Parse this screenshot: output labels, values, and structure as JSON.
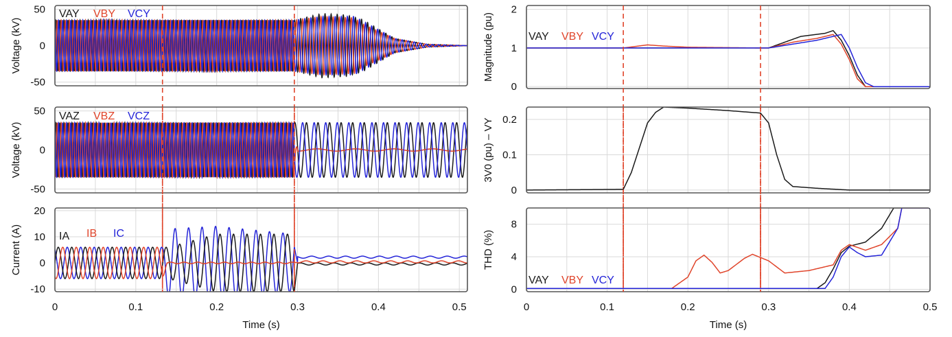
{
  "colors": {
    "A": "#1a1a1a",
    "B": "#e0442a",
    "C": "#2424d8",
    "marker": "#e0442a"
  },
  "chart_data": [
    {
      "id": "left-voltage-y",
      "type": "line",
      "ylabel": "Voltage (kV)",
      "xlim": [
        0,
        0.51
      ],
      "ylim": [
        -55,
        55
      ],
      "yticks": [
        {
          "v": -50,
          "label": "-50"
        },
        {
          "v": 0,
          "label": "0"
        },
        {
          "v": 50,
          "label": "50"
        }
      ],
      "legend": [
        "VAY",
        "VBY",
        "VCY"
      ],
      "markers_x": [
        0.133,
        0.296
      ],
      "series": [
        {
          "name": "VAY",
          "color_key": "A",
          "points": [
            [
              0,
              35
            ],
            [
              0.296,
              35
            ],
            [
              0.33,
              44
            ],
            [
              0.36,
              42
            ],
            [
              0.38,
              36
            ],
            [
              0.42,
              10
            ],
            [
              0.46,
              2
            ],
            [
              0.51,
              0
            ]
          ]
        },
        {
          "name": "VBY",
          "color_key": "B",
          "points": [
            [
              0,
              35
            ],
            [
              0.296,
              35
            ],
            [
              0.33,
              40
            ],
            [
              0.37,
              38
            ],
            [
              0.38,
              30
            ],
            [
              0.42,
              10
            ],
            [
              0.46,
              2
            ],
            [
              0.51,
              0
            ]
          ]
        },
        {
          "name": "VCY",
          "color_key": "C",
          "points": [
            [
              0,
              35
            ],
            [
              0.296,
              35
            ],
            [
              0.33,
              40
            ],
            [
              0.37,
              40
            ],
            [
              0.38,
              34
            ],
            [
              0.42,
              10
            ],
            [
              0.46,
              2
            ],
            [
              0.51,
              0
            ]
          ]
        }
      ]
    },
    {
      "id": "left-voltage-z",
      "type": "line",
      "ylabel": "Voltage (kV)",
      "xlim": [
        0,
        0.51
      ],
      "ylim": [
        -55,
        55
      ],
      "yticks": [
        {
          "v": -50,
          "label": "-50"
        },
        {
          "v": 0,
          "label": "0"
        },
        {
          "v": 50,
          "label": "50"
        }
      ],
      "legend": [
        "VAZ",
        "VBZ",
        "VCZ"
      ],
      "markers_x": [
        0.133,
        0.296
      ],
      "series": [
        {
          "name": "VAZ",
          "color_key": "A",
          "points": [
            [
              0,
              35
            ],
            [
              0.51,
              35
            ]
          ]
        },
        {
          "name": "VBZ",
          "color_key": "B",
          "points": [
            [
              0,
              35
            ],
            [
              0.296,
              35
            ],
            [
              0.3,
              0
            ],
            [
              0.51,
              0
            ]
          ]
        },
        {
          "name": "VCZ",
          "color_key": "C",
          "points": [
            [
              0,
              35
            ],
            [
              0.51,
              35
            ]
          ]
        }
      ]
    },
    {
      "id": "left-current",
      "type": "line",
      "ylabel": "Current (A)",
      "xlabel": "Time (s)",
      "xlim": [
        0,
        0.51
      ],
      "ylim": [
        -11,
        21
      ],
      "yticks": [
        {
          "v": -10,
          "label": "-10"
        },
        {
          "v": 0,
          "label": "0"
        },
        {
          "v": 10,
          "label": "10"
        },
        {
          "v": 20,
          "label": "20"
        }
      ],
      "xticks": [
        {
          "v": 0,
          "label": "0"
        },
        {
          "v": 0.1,
          "label": "0.1"
        },
        {
          "v": 0.2,
          "label": "0.2"
        },
        {
          "v": 0.3,
          "label": "0.3"
        },
        {
          "v": 0.4,
          "label": "0.4"
        },
        {
          "v": 0.5,
          "label": "0.5"
        }
      ],
      "legend": [
        "IA",
        "IB",
        "IC"
      ],
      "markers_x": [
        0.133,
        0.296
      ],
      "series": [
        {
          "name": "IA",
          "color_key": "A",
          "points": [
            [
              0,
              6
            ],
            [
              0.133,
              6
            ],
            [
              0.14,
              6
            ],
            [
              0.2,
              11
            ],
            [
              0.296,
              11
            ],
            [
              0.3,
              0
            ],
            [
              0.51,
              0
            ]
          ]
        },
        {
          "name": "IB",
          "color_key": "B",
          "points": [
            [
              0,
              6
            ],
            [
              0.133,
              6
            ],
            [
              0.14,
              0
            ],
            [
              0.51,
              0
            ]
          ]
        },
        {
          "name": "IC",
          "color_key": "C",
          "points": [
            [
              0,
              6
            ],
            [
              0.133,
              6
            ],
            [
              0.14,
              13
            ],
            [
              0.2,
              14
            ],
            [
              0.296,
              11
            ],
            [
              0.3,
              0
            ],
            [
              0.51,
              0
            ]
          ]
        }
      ]
    },
    {
      "id": "right-magnitude",
      "type": "line",
      "ylabel": "Magnitude (pu)",
      "xlim": [
        0,
        0.5
      ],
      "ylim": [
        -0.05,
        2.1
      ],
      "yticks": [
        {
          "v": 0,
          "label": "0"
        },
        {
          "v": 1,
          "label": "1"
        },
        {
          "v": 2,
          "label": "2"
        }
      ],
      "legend": [
        "VAY",
        "VBY",
        "VCY"
      ],
      "markers_x": [
        0.12,
        0.29
      ],
      "series": [
        {
          "name": "VAY",
          "color_key": "A",
          "points": [
            [
              0,
              1.0
            ],
            [
              0.3,
              1.0
            ],
            [
              0.32,
              1.15
            ],
            [
              0.34,
              1.3
            ],
            [
              0.37,
              1.38
            ],
            [
              0.38,
              1.45
            ],
            [
              0.39,
              1.2
            ],
            [
              0.4,
              0.8
            ],
            [
              0.41,
              0.3
            ],
            [
              0.42,
              0.0
            ]
          ]
        },
        {
          "name": "VBY",
          "color_key": "B",
          "points": [
            [
              0,
              1.0
            ],
            [
              0.12,
              1.0
            ],
            [
              0.15,
              1.08
            ],
            [
              0.17,
              1.05
            ],
            [
              0.2,
              1.02
            ],
            [
              0.29,
              1.0
            ],
            [
              0.3,
              1.0
            ],
            [
              0.33,
              1.15
            ],
            [
              0.36,
              1.25
            ],
            [
              0.38,
              1.35
            ],
            [
              0.39,
              1.1
            ],
            [
              0.4,
              0.7
            ],
            [
              0.41,
              0.2
            ],
            [
              0.42,
              0.0
            ]
          ]
        },
        {
          "name": "VCY",
          "color_key": "C",
          "points": [
            [
              0,
              1.0
            ],
            [
              0.3,
              1.0
            ],
            [
              0.33,
              1.1
            ],
            [
              0.36,
              1.2
            ],
            [
              0.38,
              1.3
            ],
            [
              0.39,
              1.35
            ],
            [
              0.4,
              1.0
            ],
            [
              0.41,
              0.5
            ],
            [
              0.42,
              0.1
            ],
            [
              0.43,
              0.0
            ]
          ]
        }
      ]
    },
    {
      "id": "right-3v0",
      "type": "line",
      "ylabel": "3V0 (pu) – VY",
      "xlim": [
        0,
        0.5
      ],
      "ylim": [
        -0.008,
        0.235
      ],
      "yticks": [
        {
          "v": 0,
          "label": "0"
        },
        {
          "v": 0.1,
          "label": "0.1"
        },
        {
          "v": 0.2,
          "label": "0.2"
        }
      ],
      "legend": [],
      "markers_x": [
        0.12,
        0.29
      ],
      "series": [
        {
          "name": "",
          "color_key": "A",
          "points": [
            [
              0,
              0.0
            ],
            [
              0.12,
              0.002
            ],
            [
              0.13,
              0.05
            ],
            [
              0.14,
              0.12
            ],
            [
              0.15,
              0.19
            ],
            [
              0.16,
              0.22
            ],
            [
              0.17,
              0.235
            ],
            [
              0.2,
              0.232
            ],
            [
              0.25,
              0.225
            ],
            [
              0.29,
              0.218
            ],
            [
              0.3,
              0.19
            ],
            [
              0.31,
              0.1
            ],
            [
              0.32,
              0.03
            ],
            [
              0.33,
              0.01
            ],
            [
              0.36,
              0.005
            ],
            [
              0.4,
              0.0
            ]
          ]
        }
      ]
    },
    {
      "id": "right-thd",
      "type": "line",
      "ylabel": "THD (%)",
      "xlabel": "Time (s)",
      "xlim": [
        0,
        0.5
      ],
      "ylim": [
        -0.3,
        10
      ],
      "yticks": [
        {
          "v": 0,
          "label": "0"
        },
        {
          "v": 4,
          "label": "4"
        },
        {
          "v": 8,
          "label": "8"
        }
      ],
      "xticks": [
        {
          "v": 0,
          "label": "0"
        },
        {
          "v": 0.1,
          "label": "0.1"
        },
        {
          "v": 0.2,
          "label": "0.2"
        },
        {
          "v": 0.3,
          "label": "0.3"
        },
        {
          "v": 0.4,
          "label": "0.4"
        },
        {
          "v": 0.5,
          "label": "0.5"
        }
      ],
      "legend": [
        "VAY",
        "VBY",
        "VCY"
      ],
      "markers_x": [
        0.12,
        0.29
      ],
      "series": [
        {
          "name": "VAY",
          "color_key": "A",
          "points": [
            [
              0,
              0.1
            ],
            [
              0.36,
              0.1
            ],
            [
              0.37,
              0.8
            ],
            [
              0.38,
              2.5
            ],
            [
              0.39,
              4.5
            ],
            [
              0.4,
              5.3
            ],
            [
              0.42,
              5.8
            ],
            [
              0.44,
              7.5
            ],
            [
              0.455,
              10
            ]
          ]
        },
        {
          "name": "VBY",
          "color_key": "B",
          "points": [
            [
              0,
              0.1
            ],
            [
              0.18,
              0.1
            ],
            [
              0.2,
              1.5
            ],
            [
              0.21,
              3.5
            ],
            [
              0.22,
              4.2
            ],
            [
              0.23,
              3.3
            ],
            [
              0.24,
              2.0
            ],
            [
              0.25,
              2.3
            ],
            [
              0.27,
              3.8
            ],
            [
              0.28,
              4.3
            ],
            [
              0.3,
              3.5
            ],
            [
              0.32,
              2.0
            ],
            [
              0.35,
              2.3
            ],
            [
              0.38,
              3.0
            ],
            [
              0.39,
              4.8
            ],
            [
              0.4,
              5.5
            ],
            [
              0.42,
              4.8
            ],
            [
              0.44,
              5.5
            ],
            [
              0.46,
              7.5
            ],
            [
              0.465,
              10
            ]
          ]
        },
        {
          "name": "VCY",
          "color_key": "C",
          "points": [
            [
              0,
              0.1
            ],
            [
              0.37,
              0.1
            ],
            [
              0.38,
              1.5
            ],
            [
              0.39,
              4.0
            ],
            [
              0.4,
              5.2
            ],
            [
              0.41,
              4.5
            ],
            [
              0.42,
              4.0
            ],
            [
              0.44,
              4.2
            ],
            [
              0.46,
              7.5
            ],
            [
              0.465,
              10
            ]
          ]
        }
      ]
    }
  ]
}
